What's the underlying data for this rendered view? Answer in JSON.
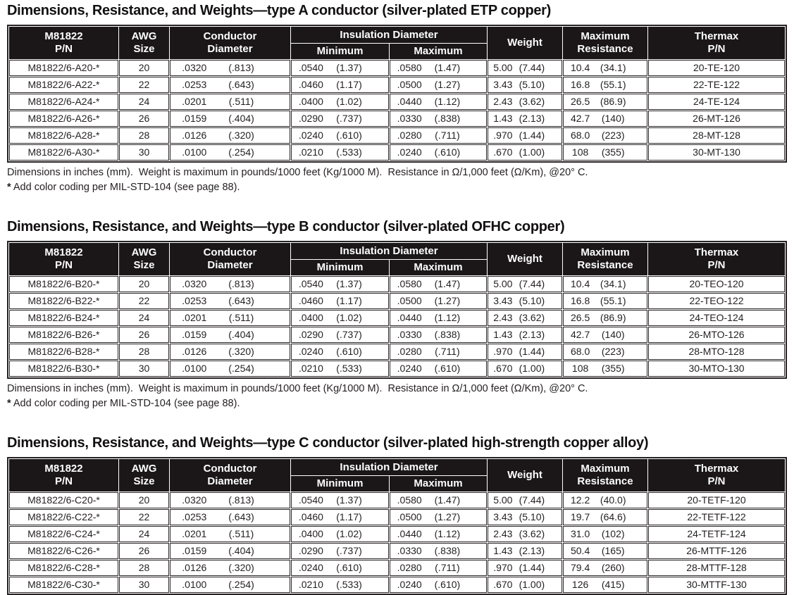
{
  "header_labels": {
    "pn_l1": "M81822",
    "pn_l2": "P/N",
    "awg_l1": "AWG",
    "awg_l2": "Size",
    "cond_l1": "Conductor",
    "cond_l2": "Diameter",
    "insulation": "Insulation Diameter",
    "min": "Minimum",
    "max": "Maximum",
    "weight": "Weight",
    "res_l1": "Maximum",
    "res_l2": "Resistance",
    "thermax_l1": "Thermax",
    "thermax_l2": "P/N"
  },
  "notes": {
    "dimensions": "Dimensions in inches (mm).  Weight is maximum in pounds/1000 feet (Kg/1000 M).  Resistance in Ω/1,000 feet (Ω/Km), @20° C.",
    "asterisk_symbol": "*",
    "asterisk_text": " Add color coding per MIL-STD-104 (see page 88)."
  },
  "colors": {
    "header_bg": "#1b1718",
    "header_text": "#ffffff",
    "body_text": "#231f20",
    "border": "#2b2728"
  },
  "sections": [
    {
      "title": "Dimensions, Resistance, and Weights—type A conductor (silver-plated ETP copper)",
      "rows": [
        [
          "M81822/6-A20-*",
          "20",
          ".0320|(.813)",
          ".0540|(1.37)",
          ".0580|(1.47)",
          "5.00|(7.44)",
          "10.4|(34.1)",
          "20-TE-120"
        ],
        [
          "M81822/6-A22-*",
          "22",
          ".0253|(.643)",
          ".0460|(1.17)",
          ".0500|(1.27)",
          "3.43|(5.10)",
          "16.8|(55.1)",
          "22-TE-122"
        ],
        [
          "M81822/6-A24-*",
          "24",
          ".0201|(.511)",
          ".0400|(1.02)",
          ".0440|(1.12)",
          "2.43|(3.62)",
          "26.5|(86.9)",
          "24-TE-124"
        ],
        [
          "M81822/6-A26-*",
          "26",
          ".0159|(.404)",
          ".0290|(.737)",
          ".0330|(.838)",
          "1.43|(2.13)",
          "42.7|(140)",
          "26-MT-126"
        ],
        [
          "M81822/6-A28-*",
          "28",
          ".0126|(.320)",
          ".0240|(.610)",
          ".0280|(.711)",
          ".970|(1.44)",
          "68.0|(223)",
          "28-MT-128"
        ],
        [
          "M81822/6-A30-*",
          "30",
          ".0100|(.254)",
          ".0210|(.533)",
          ".0240|(.610)",
          ".670|(1.00)",
          "108|(355)",
          "30-MT-130"
        ]
      ]
    },
    {
      "title": "Dimensions, Resistance, and Weights—type B conductor (silver-plated OFHC copper)",
      "rows": [
        [
          "M81822/6-B20-*",
          "20",
          ".0320|(.813)",
          ".0540|(1.37)",
          ".0580|(1.47)",
          "5.00|(7.44)",
          "10.4|(34.1)",
          "20-TEO-120"
        ],
        [
          "M81822/6-B22-*",
          "22",
          ".0253|(.643)",
          ".0460|(1.17)",
          ".0500|(1.27)",
          "3.43|(5.10)",
          "16.8|(55.1)",
          "22-TEO-122"
        ],
        [
          "M81822/6-B24-*",
          "24",
          ".0201|(.511)",
          ".0400|(1.02)",
          ".0440|(1.12)",
          "2.43|(3.62)",
          "26.5|(86.9)",
          "24-TEO-124"
        ],
        [
          "M81822/6-B26-*",
          "26",
          ".0159|(.404)",
          ".0290|(.737)",
          ".0330|(.838)",
          "1.43|(2.13)",
          "42.7|(140)",
          "26-MTO-126"
        ],
        [
          "M81822/6-B28-*",
          "28",
          ".0126|(.320)",
          ".0240|(.610)",
          ".0280|(.711)",
          ".970|(1.44)",
          "68.0|(223)",
          "28-MTO-128"
        ],
        [
          "M81822/6-B30-*",
          "30",
          ".0100|(.254)",
          ".0210|(.533)",
          ".0240|(.610)",
          ".670|(1.00)",
          "108|(355)",
          "30-MTO-130"
        ]
      ]
    },
    {
      "title": "Dimensions, Resistance, and Weights—type C conductor (silver-plated high-strength copper alloy)",
      "rows": [
        [
          "M81822/6-C20-*",
          "20",
          ".0320|(.813)",
          ".0540|(1.37)",
          ".0580|(1.47)",
          "5.00|(7.44)",
          "12.2|(40.0)",
          "20-TETF-120"
        ],
        [
          "M81822/6-C22-*",
          "22",
          ".0253|(.643)",
          ".0460|(1.17)",
          ".0500|(1.27)",
          "3.43|(5.10)",
          "19.7|(64.6)",
          "22-TETF-122"
        ],
        [
          "M81822/6-C24-*",
          "24",
          ".0201|(.511)",
          ".0400|(1.02)",
          ".0440|(1.12)",
          "2.43|(3.62)",
          "31.0|(102)",
          "24-TETF-124"
        ],
        [
          "M81822/6-C26-*",
          "26",
          ".0159|(.404)",
          ".0290|(.737)",
          ".0330|(.838)",
          "1.43|(2.13)",
          "50.4|(165)",
          "26-MTTF-126"
        ],
        [
          "M81822/6-C28-*",
          "28",
          ".0126|(.320)",
          ".0240|(.610)",
          ".0280|(.711)",
          ".970|(1.44)",
          "79.4|(260)",
          "28-MTTF-128"
        ],
        [
          "M81822/6-C30-*",
          "30",
          ".0100|(.254)",
          ".0210|(.533)",
          ".0240|(.610)",
          ".670|(1.00)",
          "126|(415)",
          "30-MTTF-130"
        ]
      ]
    }
  ]
}
